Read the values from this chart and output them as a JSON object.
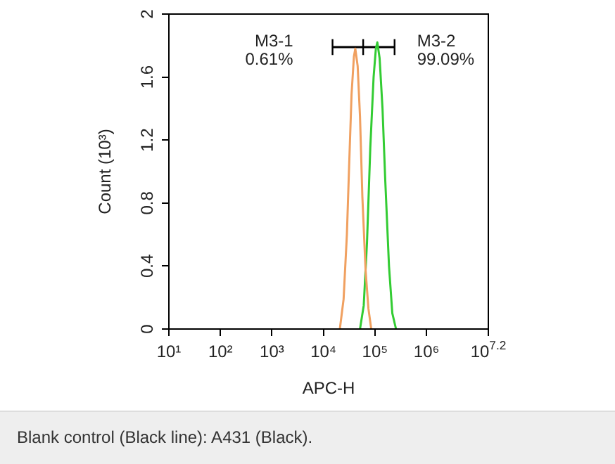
{
  "chart_data": {
    "type": "line",
    "xlabel": "APC-H",
    "ylabel": "Count (10³)",
    "log": "x",
    "grid": false,
    "legend": false,
    "marker": "none",
    "line_style": "solid",
    "xlim": [
      10,
      15848932
    ],
    "ylim": [
      0,
      2
    ],
    "xticks": [
      {
        "value": 10,
        "label": "10¹"
      },
      {
        "value": 100,
        "label": "10²"
      },
      {
        "value": 1000,
        "label": "10³"
      },
      {
        "value": 10000,
        "label": "10⁴"
      },
      {
        "value": 100000,
        "label": "10⁵"
      },
      {
        "value": 1000000,
        "label": "10⁶"
      },
      {
        "value": 15848932,
        "label": "10$^{7.2}$"
      }
    ],
    "yticks": [
      0,
      0.4,
      0.8,
      1.2,
      1.6,
      2
    ],
    "series": [
      {
        "color": "#f0a060",
        "x": [
          20800,
          24600,
          28500,
          31600,
          35100,
          39000,
          41500,
          46100,
          51200,
          56900,
          65800,
          74600,
          84600
        ],
        "values": [
          0,
          0.19,
          0.6,
          1.05,
          1.49,
          1.73,
          1.78,
          1.67,
          1.35,
          0.84,
          0.37,
          0.13,
          0
        ]
      },
      {
        "color": "#33cc33",
        "x": [
          51200,
          60500,
          70000,
          81100,
          94000,
          104000,
          111000,
          123000,
          140000,
          158000,
          187000,
          217000,
          256000
        ],
        "values": [
          0,
          0.15,
          0.55,
          1.15,
          1.6,
          1.78,
          1.82,
          1.72,
          1.4,
          0.95,
          0.4,
          0.1,
          0
        ]
      },
      {
        "color": "#000000",
        "x": [
          15000,
          59000,
          240000
        ],
        "values": [
          1.79,
          1.79,
          1.79
        ],
        "errors": [
          0.05,
          0.05,
          0.05
        ]
      }
    ],
    "annotations": [
      "M3-1\n0.61%",
      "M3-2\n99.09%",
      "Blank control (Black line): A431 (Black)."
    ]
  }
}
